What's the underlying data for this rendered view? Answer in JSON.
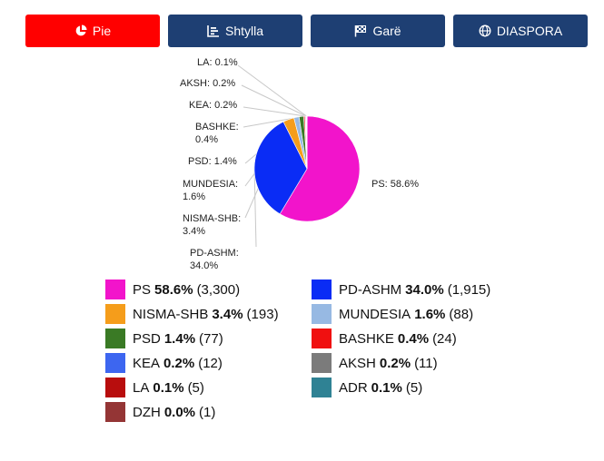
{
  "tabs": [
    {
      "id": "pie",
      "label": "Pie",
      "icon": "pie-chart-icon"
    },
    {
      "id": "bar",
      "label": "Shtylla",
      "icon": "bar-chart-icon"
    },
    {
      "id": "race",
      "label": "Garë",
      "icon": "checkered-flag-icon"
    },
    {
      "id": "diaspora",
      "label": "DIASPORA",
      "icon": "globe-icon"
    }
  ],
  "active_tab": "pie",
  "chart_data": {
    "type": "pie",
    "title": "",
    "slices": [
      {
        "name": "PS",
        "percent": 58.6,
        "votes": 3300,
        "pct_label": "58.6%",
        "votes_label": "(3,300)",
        "callout": "PS: 58.6%",
        "color": "#f214cb"
      },
      {
        "name": "PD-ASHM",
        "percent": 34.0,
        "votes": 1915,
        "pct_label": "34.0%",
        "votes_label": "(1,915)",
        "callout": "PD-ASHM: 34.0%",
        "color": "#0a2cf5"
      },
      {
        "name": "NISMA-SHB",
        "percent": 3.4,
        "votes": 193,
        "pct_label": "3.4%",
        "votes_label": "(193)",
        "callout": "NISMA-SHB: 3.4%",
        "color": "#f59d1b"
      },
      {
        "name": "MUNDESIA",
        "percent": 1.6,
        "votes": 88,
        "pct_label": "1.6%",
        "votes_label": "(88)",
        "callout": "MUNDESIA: 1.6%",
        "color": "#97b9e3"
      },
      {
        "name": "PSD",
        "percent": 1.4,
        "votes": 77,
        "pct_label": "1.4%",
        "votes_label": "(77)",
        "callout": "PSD: 1.4%",
        "color": "#3a7a25"
      },
      {
        "name": "BASHKE",
        "percent": 0.4,
        "votes": 24,
        "pct_label": "0.4%",
        "votes_label": "(24)",
        "callout": "BASHKE: 0.4%",
        "color": "#f01010"
      },
      {
        "name": "KEA",
        "percent": 0.2,
        "votes": 12,
        "pct_label": "0.2%",
        "votes_label": "(12)",
        "callout": "KEA: 0.2%",
        "color": "#3d66f0"
      },
      {
        "name": "AKSH",
        "percent": 0.2,
        "votes": 11,
        "pct_label": "0.2%",
        "votes_label": "(11)",
        "callout": "AKSH: 0.2%",
        "color": "#7b7b7b"
      },
      {
        "name": "LA",
        "percent": 0.1,
        "votes": 5,
        "pct_label": "0.1%",
        "votes_label": "(5)",
        "callout": "LA: 0.1%",
        "color": "#b80d0d"
      },
      {
        "name": "ADR",
        "percent": 0.1,
        "votes": 5,
        "pct_label": "0.1%",
        "votes_label": "(5)",
        "callout": "",
        "color": "#2f8294"
      },
      {
        "name": "DZH",
        "percent": 0.0,
        "votes": 1,
        "pct_label": "0.0%",
        "votes_label": "(1)",
        "callout": "",
        "color": "#943535"
      }
    ],
    "legend_order": [
      "PS",
      "PD-ASHM",
      "NISMA-SHB",
      "MUNDESIA",
      "PSD",
      "BASHKE",
      "KEA",
      "AKSH",
      "LA",
      "ADR",
      "DZH"
    ]
  }
}
